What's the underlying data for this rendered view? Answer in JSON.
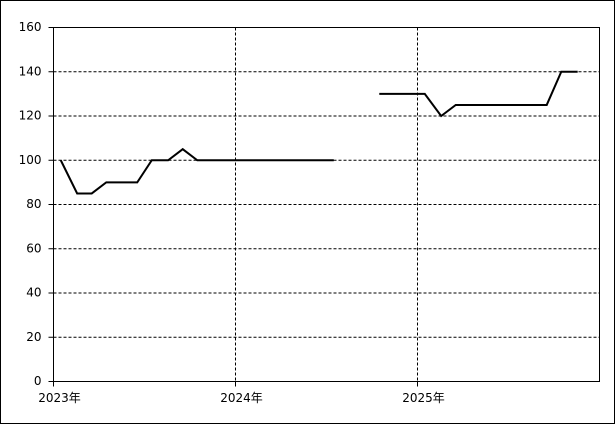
{
  "chart_data": {
    "type": "line",
    "x": [
      2023.04,
      2023.13,
      2023.21,
      2023.29,
      2023.38,
      2023.46,
      2023.54,
      2023.63,
      2023.71,
      2023.79,
      2023.88,
      2023.96,
      2024.04,
      2024.13,
      2024.21,
      2024.29,
      2024.38,
      2024.46,
      2024.54,
      2024.63,
      2024.71,
      2024.79,
      2024.88,
      2024.96,
      2025.04,
      2025.13,
      2025.21,
      2025.29,
      2025.38,
      2025.46,
      2025.54,
      2025.63,
      2025.71,
      2025.79,
      2025.88
    ],
    "values": [
      100,
      85,
      85,
      90,
      90,
      90,
      100,
      100,
      105,
      100,
      100,
      100,
      100,
      100,
      100,
      100,
      100,
      100,
      100,
      null,
      null,
      130,
      130,
      130,
      130,
      120,
      125,
      125,
      125,
      125,
      125,
      125,
      125,
      140,
      140
    ],
    "color": "#000000",
    "xlim": [
      2023,
      2026
    ],
    "xticks": [
      {
        "value": 2023,
        "label": "2023年"
      },
      {
        "value": 2024,
        "label": "2024年"
      },
      {
        "value": 2025,
        "label": "2025年"
      }
    ],
    "ylim": [
      0,
      160
    ],
    "yticks": [
      0,
      20,
      40,
      60,
      80,
      100,
      120,
      140,
      160
    ],
    "grid": true
  }
}
